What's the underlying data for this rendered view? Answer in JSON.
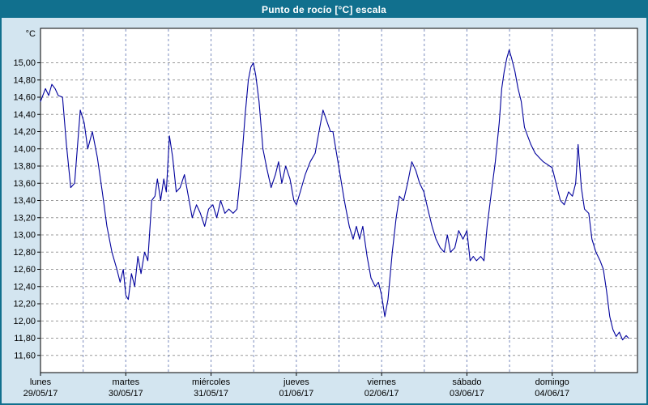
{
  "window": {
    "title": "Punto de rocío [°C] escala"
  },
  "colors": {
    "frame": "#11708e",
    "titlebar_bg": "#11708e",
    "titlebar_text": "#ffffff",
    "background": "#d3e5f0",
    "plot_bg": "#ffffff",
    "plot_border": "#000000",
    "hgrid": "#999999",
    "vgrid": "#7b8cbe",
    "line": "#00009c",
    "tick_text": "#000000"
  },
  "axes": {
    "unit_label": "°C",
    "y_tick_labels": [
      "15,00",
      "14,80",
      "14,60",
      "14,40",
      "14,20",
      "14,00",
      "13,80",
      "13,60",
      "13,40",
      "13,20",
      "13,00",
      "12,80",
      "12,60",
      "12,40",
      "12,20",
      "12,00",
      "11,80",
      "11,60"
    ],
    "day_names": [
      "lunes",
      "martes",
      "miércoles",
      "jueves",
      "viernes",
      "sábado",
      "domingo"
    ],
    "day_dates": [
      "29/05/17",
      "30/05/17",
      "31/05/17",
      "01/06/17",
      "02/06/17",
      "03/06/17",
      "04/06/17"
    ]
  },
  "chart_data": {
    "type": "line",
    "title": "Punto de rocío [°C] escala",
    "series_name": "Punto de rocío",
    "ylabel": "°C",
    "ylim": [
      11.4,
      15.4
    ],
    "xlim_hours": [
      0,
      168
    ],
    "x_axis": "hours since lunes 29/05/17 00:00",
    "grid": true,
    "legend": "none",
    "x_hours": [
      0,
      1.4,
      2.3,
      3.2,
      4.1,
      5,
      6.2,
      7.3,
      8.5,
      9.6,
      11.2,
      12.3,
      13.3,
      14.6,
      16,
      17.4,
      18.7,
      20.1,
      21.5,
      22.4,
      23.3,
      24,
      24.7,
      25.6,
      26.5,
      27.4,
      28.3,
      29.3,
      30.2,
      31.3,
      32.2,
      32.9,
      33.8,
      34.7,
      35.4,
      36.3,
      37.2,
      38.2,
      39.3,
      40.5,
      41.6,
      42.7,
      43.9,
      45,
      46.2,
      47.3,
      48.5,
      49.6,
      50.7,
      51.9,
      53,
      54.2,
      55.3,
      56.5,
      57.6,
      58.5,
      59.2,
      59.9,
      60.6,
      61.5,
      62.6,
      63.8,
      64.9,
      66.1,
      67,
      67.9,
      69,
      70.2,
      71.3,
      72,
      73.1,
      74.5,
      75.9,
      77.3,
      78.6,
      79.5,
      81.6,
      82.3,
      83.9,
      85.5,
      86.9,
      88,
      88.9,
      89.8,
      90.7,
      91.9,
      93,
      94.2,
      95.1,
      96,
      96.9,
      97.8,
      99,
      100.1,
      101,
      102.2,
      103.3,
      104.5,
      105.6,
      106.7,
      107.9,
      109,
      110.2,
      111.3,
      112.5,
      113.6,
      114.5,
      115.4,
      116.6,
      117.7,
      118.9,
      120,
      120.9,
      121.8,
      122.7,
      123.9,
      124.8,
      125.7,
      126.9,
      128,
      129.1,
      129.8,
      130.5,
      131.2,
      131.9,
      132.6,
      133.5,
      134.4,
      135.3,
      136.2,
      137.1,
      138,
      139.2,
      140.3,
      141.5,
      142.6,
      144,
      145.1,
      146.3,
      147.4,
      148.6,
      149.7,
      150.6,
      151.3,
      152.2,
      153.1,
      154.3,
      155.2,
      156.3,
      157.5,
      158.4,
      159.3,
      160.2,
      161.1,
      162,
      162.9,
      163.8,
      164.8,
      165.5
    ],
    "values": [
      14.55,
      14.7,
      14.62,
      14.75,
      14.7,
      14.62,
      14.6,
      14.05,
      13.55,
      13.6,
      14.45,
      14.3,
      14.0,
      14.2,
      13.9,
      13.5,
      13.1,
      12.8,
      12.6,
      12.45,
      12.6,
      12.3,
      12.25,
      12.55,
      12.4,
      12.75,
      12.55,
      12.8,
      12.7,
      13.4,
      13.45,
      13.65,
      13.4,
      13.65,
      13.5,
      14.15,
      13.9,
      13.5,
      13.55,
      13.7,
      13.45,
      13.2,
      13.35,
      13.25,
      13.1,
      13.3,
      13.35,
      13.2,
      13.4,
      13.25,
      13.3,
      13.25,
      13.3,
      13.8,
      14.4,
      14.8,
      14.95,
      15.0,
      14.85,
      14.55,
      14.0,
      13.75,
      13.55,
      13.7,
      13.85,
      13.6,
      13.8,
      13.65,
      13.4,
      13.35,
      13.5,
      13.7,
      13.85,
      13.95,
      14.25,
      14.45,
      14.2,
      14.2,
      13.8,
      13.4,
      13.1,
      12.95,
      13.1,
      12.95,
      13.1,
      12.75,
      12.5,
      12.4,
      12.45,
      12.3,
      12.05,
      12.25,
      12.8,
      13.2,
      13.45,
      13.4,
      13.6,
      13.85,
      13.75,
      13.6,
      13.5,
      13.3,
      13.1,
      12.95,
      12.85,
      12.8,
      13.0,
      12.8,
      12.85,
      13.05,
      12.95,
      13.05,
      12.7,
      12.75,
      12.7,
      12.75,
      12.7,
      13.1,
      13.5,
      13.85,
      14.3,
      14.7,
      14.9,
      15.05,
      15.15,
      15.05,
      14.9,
      14.7,
      14.55,
      14.25,
      14.15,
      14.05,
      13.95,
      13.9,
      13.85,
      13.82,
      13.78,
      13.6,
      13.4,
      13.35,
      13.5,
      13.45,
      13.6,
      14.05,
      13.55,
      13.3,
      13.25,
      12.95,
      12.8,
      12.7,
      12.6,
      12.35,
      12.05,
      11.9,
      11.82,
      11.87,
      11.78,
      11.83,
      11.8
    ]
  }
}
